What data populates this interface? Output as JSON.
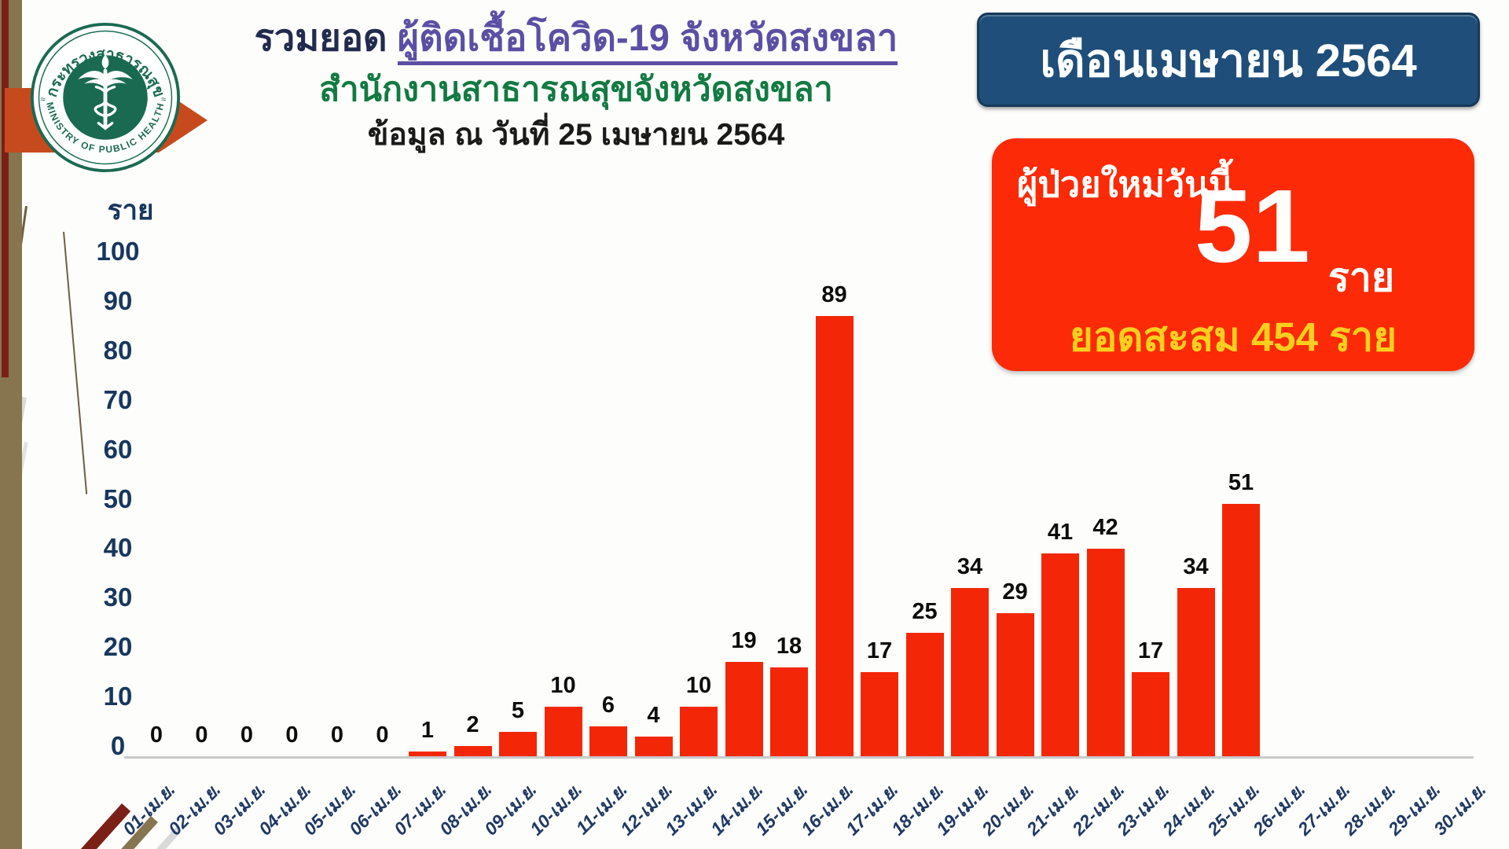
{
  "logo": {
    "thai": "กระทรวงสาธารณสุข",
    "english": "MINISTRY OF PUBLIC HEALTH"
  },
  "header": {
    "title_prefix": "รวมยอด",
    "title_main": "ผู้ติดเชื้อโควิด-19 จังหวัดสงขลา",
    "subtitle": "สำนักงานสาธารณสุขจังหวัดสงขลา",
    "as_of": "ข้อมูล ณ วันที่ 25 เมษายน 2564"
  },
  "month_badge": {
    "label": "เดือนเมษายน 2564"
  },
  "summary_card": {
    "new_cases_label": "ผู้ป่วยใหม่วันนี้",
    "new_cases_value": "51",
    "new_cases_unit": "ราย",
    "cumulative_text": "ยอดสะสม 454 ราย"
  },
  "colors": {
    "bar_red": "#f32708",
    "card_red": "#fc2a06",
    "badge_blue": "#1e4e79",
    "accent_yellow": "#f9d01e",
    "title_navy": "#222a4e",
    "title_purple": "#5b4fa4",
    "subtitle_green": "#127a42",
    "axis_navy": "#17375d",
    "xaxis_navy": "#1f3864",
    "olive": "#877550",
    "maroon": "#7b2016",
    "arrow_orange": "#c64a1e",
    "logo_green": "#1a6a52"
  },
  "chart_data": {
    "type": "bar",
    "title": "",
    "unit_label": "ราย",
    "categories": [
      "01-เม.ย.",
      "02-เม.ย.",
      "03-เม.ย.",
      "04-เม.ย.",
      "05-เม.ย.",
      "06-เม.ย.",
      "07-เม.ย.",
      "08-เม.ย.",
      "09-เม.ย.",
      "10-เม.ย.",
      "11-เม.ย.",
      "12-เม.ย.",
      "13-เม.ย.",
      "14-เม.ย.",
      "15-เม.ย.",
      "16-เม.ย.",
      "17-เม.ย.",
      "18-เม.ย.",
      "19-เม.ย.",
      "20-เม.ย.",
      "21-เม.ย.",
      "22-เม.ย.",
      "23-เม.ย.",
      "24-เม.ย.",
      "25-เม.ย.",
      "26-เม.ย.",
      "27-เม.ย.",
      "28-เม.ย.",
      "29-เม.ย.",
      "30-เม.ย."
    ],
    "values": [
      0,
      0,
      0,
      0,
      0,
      0,
      1,
      2,
      5,
      10,
      6,
      4,
      10,
      19,
      18,
      89,
      17,
      25,
      34,
      29,
      41,
      42,
      17,
      34,
      51,
      null,
      null,
      null,
      null,
      null
    ],
    "ylim": [
      0,
      100
    ],
    "ytick_step": 10,
    "grid": false,
    "legend": false,
    "data_labels": true
  }
}
